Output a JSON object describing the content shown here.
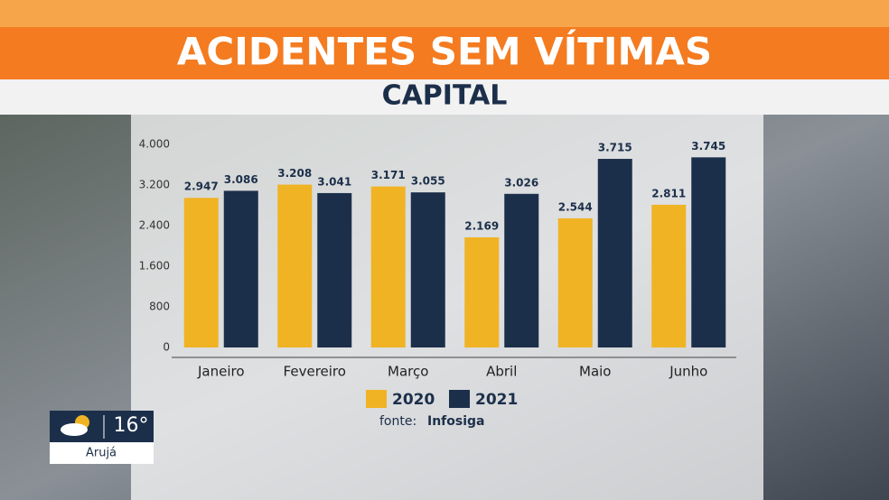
{
  "chart_data": {
    "type": "bar",
    "title": "ACIDENTES SEM VÍTIMAS",
    "subtitle": "CAPITAL",
    "categories": [
      "Janeiro",
      "Fevereiro",
      "Março",
      "Abril",
      "Maio",
      "Junho"
    ],
    "series": [
      {
        "name": "2020",
        "color": "#f0b323",
        "values": [
          2947,
          3208,
          3171,
          2169,
          2544,
          2811
        ],
        "value_labels": [
          "2.947",
          "3.208",
          "3.171",
          "2.169",
          "2.544",
          "2.811"
        ]
      },
      {
        "name": "2021",
        "color": "#1c2f4a",
        "values": [
          3086,
          3041,
          3055,
          3026,
          3715,
          3745
        ],
        "value_labels": [
          "3.086",
          "3.041",
          "3.055",
          "3.026",
          "3.715",
          "3.745"
        ]
      }
    ],
    "ylim": [
      0,
      4000
    ],
    "yticks": [
      0,
      800,
      {
        "value": 1600,
        "label": "1.600"
      },
      {
        "value": 2400,
        "label": "2.400"
      },
      {
        "value": 3200,
        "label": "3.200"
      },
      {
        "value": 4000,
        "label": "4.000"
      }
    ],
    "source_label": "fonte:",
    "source": "Infosiga"
  },
  "weather": {
    "temperature": "16°",
    "city": "Arujá"
  }
}
